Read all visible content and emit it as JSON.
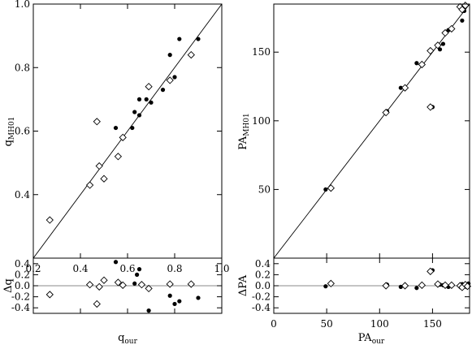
{
  "chart_data": [
    {
      "id": "q-main",
      "type": "scatter",
      "xlabel": "q",
      "xlabel_sub": "our",
      "ylabel": "q",
      "ylabel_sub": "MH01",
      "xlim": [
        0.2,
        1.0
      ],
      "ylim": [
        0.2,
        1.0
      ],
      "xticks": [
        0.2,
        0.4,
        0.6,
        0.8,
        1.0
      ],
      "xtick_labels": [
        "0.2",
        "0.4",
        "0.6",
        "0.8",
        "1.0"
      ],
      "yticks": [
        0.4,
        0.6,
        0.8,
        1.0
      ],
      "ytick_labels": [
        "0.4",
        "0.6",
        "0.8",
        "1.0"
      ],
      "reference_line": "y = x",
      "series": [
        {
          "marker": "filled-circle",
          "points": [
            [
              0.55,
              0.61
            ],
            [
              0.62,
              0.61
            ],
            [
              0.63,
              0.66
            ],
            [
              0.65,
              0.7
            ],
            [
              0.65,
              0.65
            ],
            [
              0.68,
              0.7
            ],
            [
              0.7,
              0.69
            ],
            [
              0.75,
              0.73
            ],
            [
              0.78,
              0.84
            ],
            [
              0.8,
              0.77
            ],
            [
              0.82,
              0.89
            ],
            [
              0.9,
              0.89
            ]
          ]
        },
        {
          "marker": "open-diamond",
          "points": [
            [
              0.27,
              0.32
            ],
            [
              0.44,
              0.43
            ],
            [
              0.47,
              0.63
            ],
            [
              0.48,
              0.49
            ],
            [
              0.5,
              0.45
            ],
            [
              0.56,
              0.52
            ],
            [
              0.58,
              0.58
            ],
            [
              0.69,
              0.74
            ],
            [
              0.78,
              0.76
            ],
            [
              0.87,
              0.84
            ]
          ]
        }
      ]
    },
    {
      "id": "q-resid",
      "type": "scatter",
      "ylabel": "Δq",
      "xlim": [
        0.2,
        1.0
      ],
      "ylim": [
        -0.5,
        0.5
      ],
      "yticks": [
        0.4,
        0.2,
        0.0,
        -0.2,
        -0.4
      ],
      "ytick_labels": [
        "0.4",
        "0.2",
        "0.0",
        "-0.2",
        "-0.4"
      ],
      "reference_line": "y = 0",
      "series": [
        {
          "marker": "filled-circle",
          "points": [
            [
              0.55,
              0.43
            ],
            [
              0.63,
              0.04
            ],
            [
              0.65,
              0.3
            ],
            [
              0.64,
              0.2
            ],
            [
              0.69,
              -0.45
            ],
            [
              0.78,
              -0.18
            ],
            [
              0.8,
              -0.33
            ],
            [
              0.82,
              -0.28
            ],
            [
              0.9,
              -0.22
            ]
          ]
        },
        {
          "marker": "open-diamond",
          "points": [
            [
              0.27,
              -0.16
            ],
            [
              0.44,
              0.02
            ],
            [
              0.47,
              -0.33
            ],
            [
              0.48,
              -0.02
            ],
            [
              0.5,
              0.1
            ],
            [
              0.56,
              0.06
            ],
            [
              0.58,
              0.01
            ],
            [
              0.66,
              0.02
            ],
            [
              0.69,
              -0.05
            ],
            [
              0.78,
              0.03
            ],
            [
              0.87,
              0.03
            ]
          ]
        }
      ]
    },
    {
      "id": "pa-main",
      "type": "scatter",
      "xlabel": "PA",
      "xlabel_sub": "our",
      "ylabel": "PA",
      "ylabel_sub": "MH01",
      "xlim": [
        0,
        185
      ],
      "ylim": [
        0,
        185
      ],
      "yticks": [
        50,
        100,
        150
      ],
      "ytick_labels": [
        "50",
        "100",
        "150"
      ],
      "reference_line": "y = x",
      "series": [
        {
          "marker": "filled-circle",
          "points": [
            [
              49,
              50
            ],
            [
              107,
              107
            ],
            [
              120,
              124
            ],
            [
              135,
              142
            ],
            [
              150,
              110
            ],
            [
              157,
              152
            ],
            [
              160,
              156
            ],
            [
              165,
              166
            ],
            [
              178,
              173
            ],
            [
              180,
              180
            ]
          ]
        },
        {
          "marker": "open-diamond",
          "points": [
            [
              54,
              51
            ],
            [
              106,
              106
            ],
            [
              124,
              124
            ],
            [
              140,
              141
            ],
            [
              148,
              110
            ],
            [
              148,
              151
            ],
            [
              155,
              155
            ],
            [
              162,
              164
            ],
            [
              168,
              167
            ],
            [
              176,
              183
            ],
            [
              178,
              181
            ],
            [
              181,
              184
            ]
          ]
        }
      ]
    },
    {
      "id": "pa-resid",
      "type": "scatter",
      "xlabel": "PA",
      "xlabel_sub": "our",
      "ylabel": "ΔPA",
      "xlim": [
        0,
        185
      ],
      "ylim": [
        -0.5,
        0.5
      ],
      "xticks": [
        0,
        50,
        100,
        150
      ],
      "xtick_labels": [
        "0",
        "50",
        "100",
        "150"
      ],
      "yticks": [
        0.4,
        0.2,
        0.0,
        -0.2,
        -0.4
      ],
      "ytick_labels": [
        "0.4",
        "0.2",
        "0.0",
        "-0.2",
        "-0.4"
      ],
      "reference_line": "y = 0",
      "series": [
        {
          "marker": "filled-circle",
          "points": [
            [
              49,
              -0.01
            ],
            [
              107,
              0.02
            ],
            [
              120,
              -0.02
            ],
            [
              135,
              -0.04
            ],
            [
              150,
              0.28
            ],
            [
              157,
              0.02
            ],
            [
              160,
              0.01
            ],
            [
              165,
              -0.02
            ],
            [
              178,
              0.03
            ],
            [
              180,
              0.02
            ],
            [
              182,
              -0.02
            ],
            [
              184,
              0.04
            ]
          ]
        },
        {
          "marker": "open-diamond",
          "points": [
            [
              54,
              0.04
            ],
            [
              106,
              0.0
            ],
            [
              124,
              0.0
            ],
            [
              140,
              0.01
            ],
            [
              148,
              0.26
            ],
            [
              155,
              0.03
            ],
            [
              162,
              0.01
            ],
            [
              168,
              0.01
            ],
            [
              176,
              0.0
            ],
            [
              178,
              -0.03
            ],
            [
              181,
              0.02
            ],
            [
              183,
              -0.01
            ]
          ]
        }
      ]
    }
  ]
}
